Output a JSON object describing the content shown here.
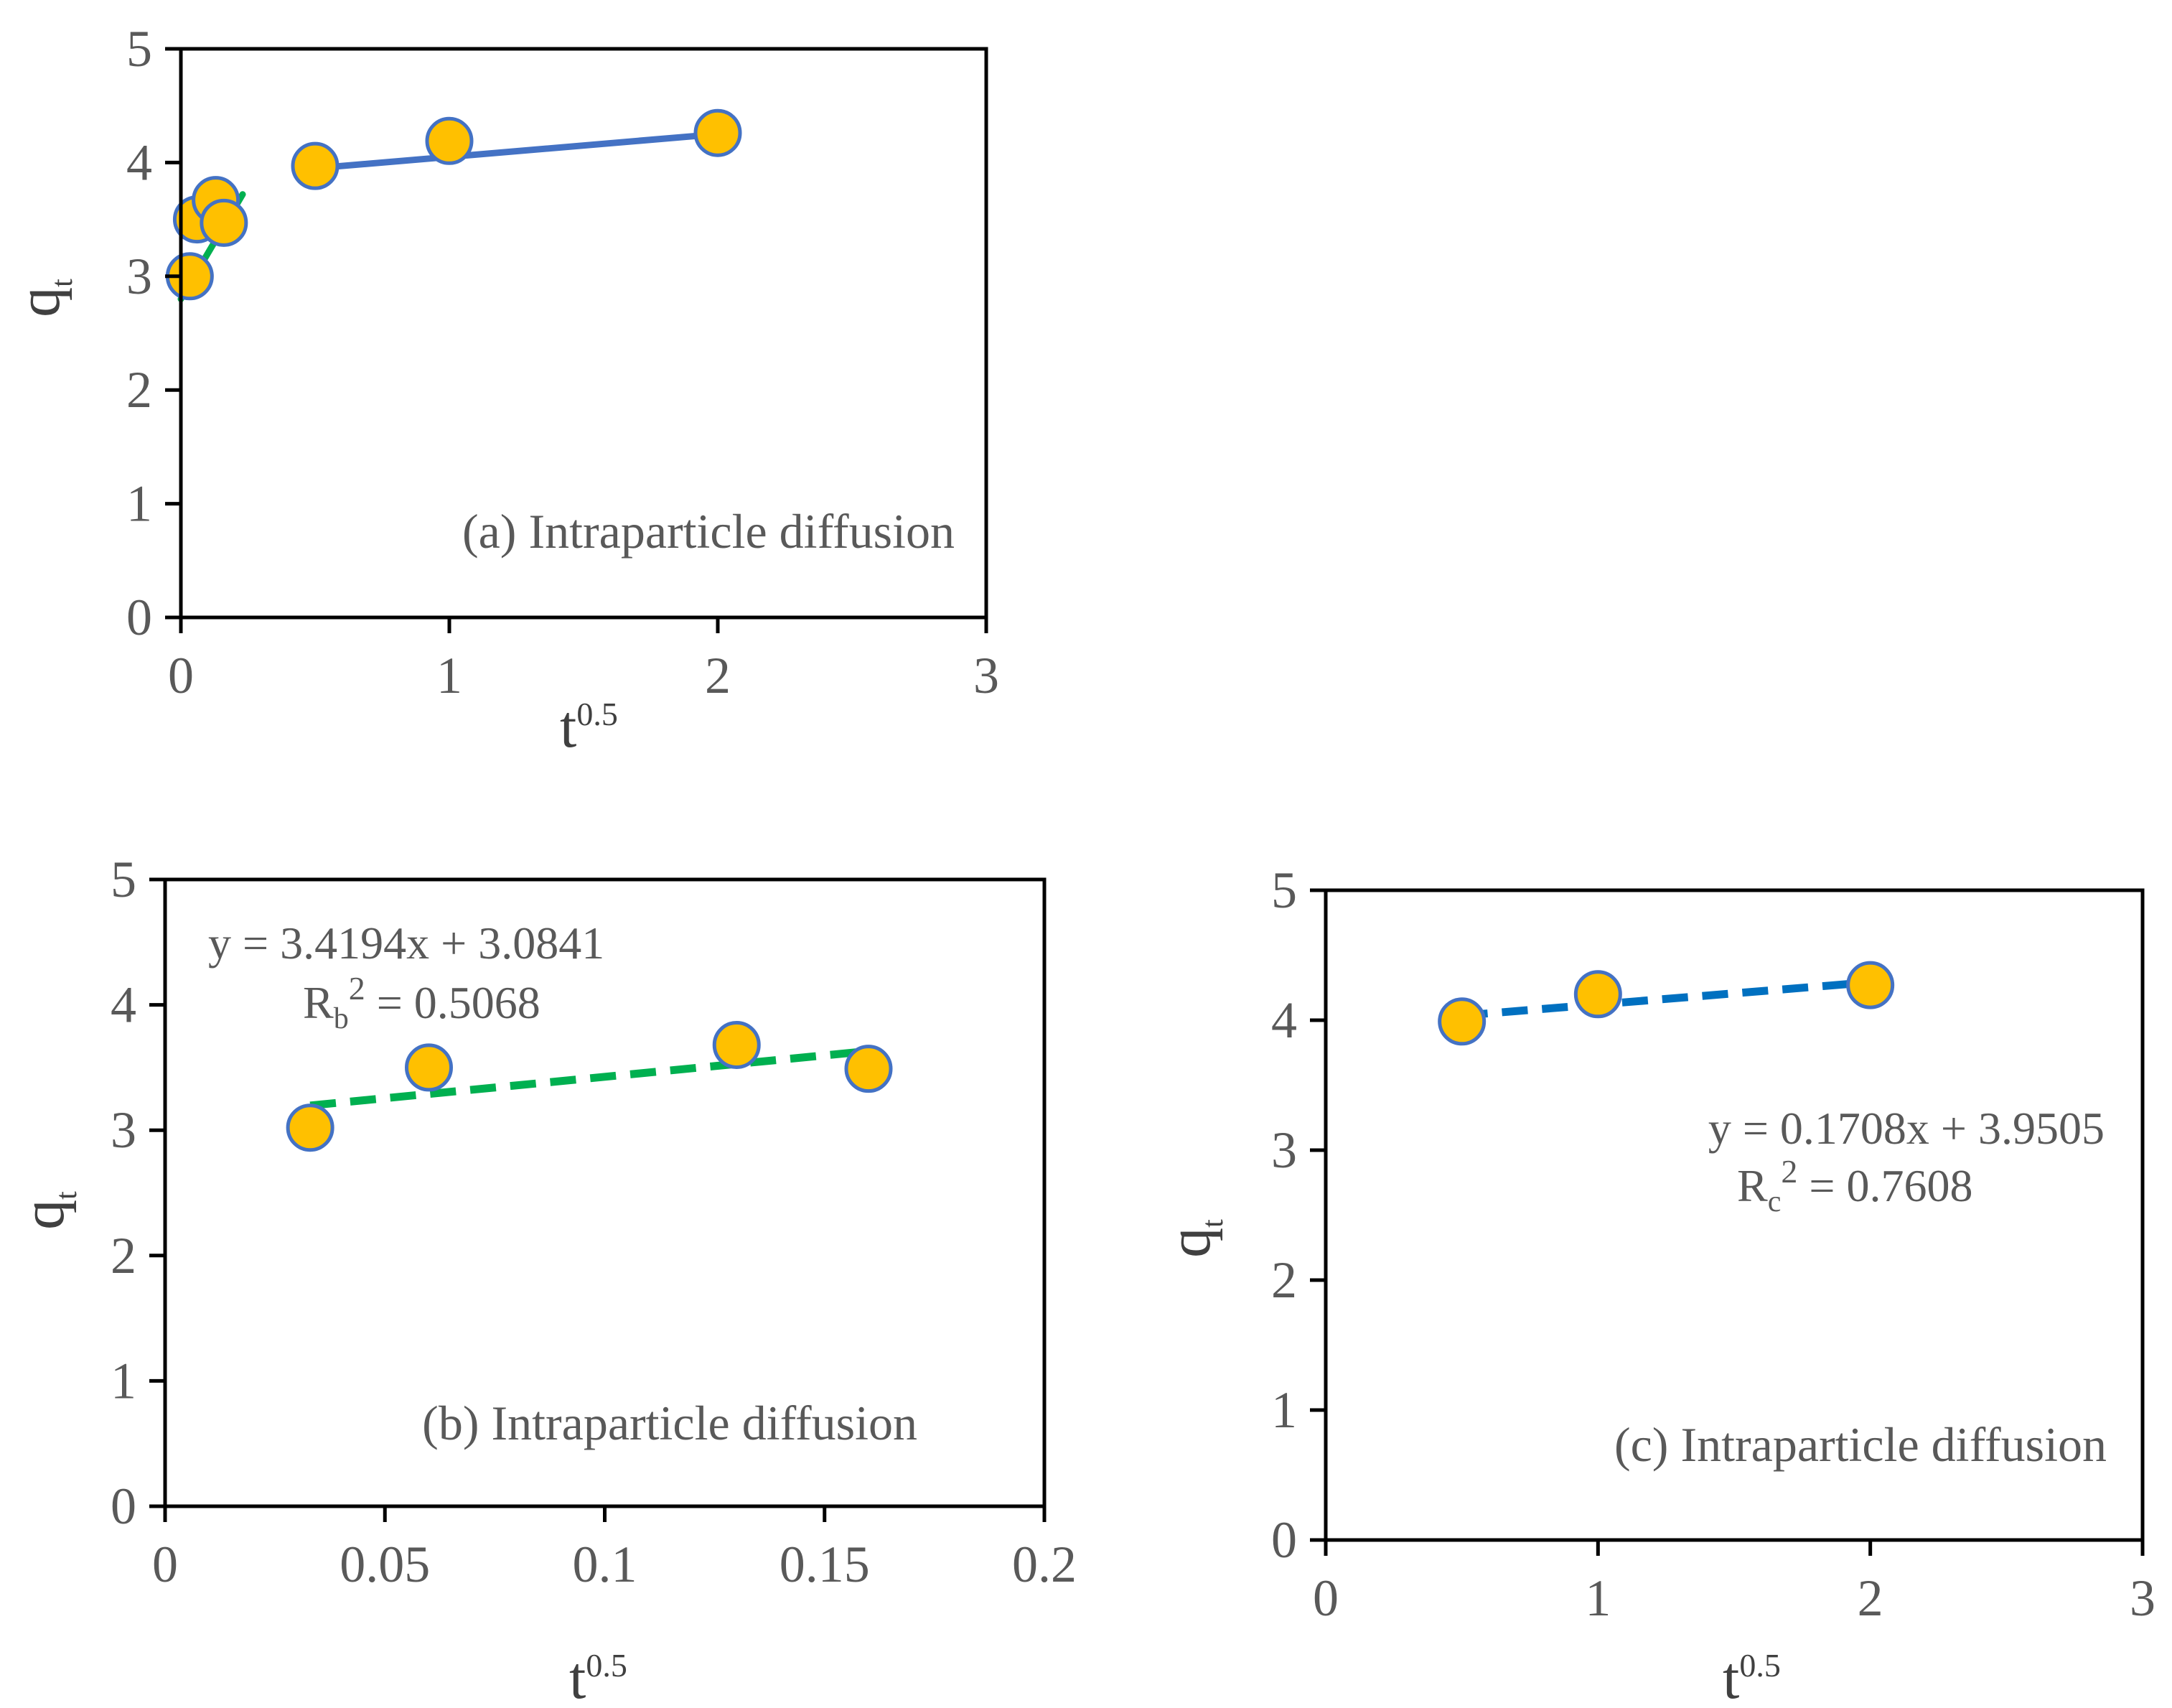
{
  "colors": {
    "marker_fill": "#FFC000",
    "marker_edge": "#4472C4",
    "green_line": "#00B050",
    "blue_solid_line": "#4472C4",
    "blue_dashed_line": "#0070C0",
    "axis": "#000000",
    "text": "#595959"
  },
  "chart_data": [
    {
      "id": "a",
      "type": "scatter",
      "title": "(a) Intraparticle diffusion",
      "xlabel_base": "t",
      "xlabel_sup": "0.5",
      "ylabel_base": "q",
      "ylabel_sub": "t",
      "xlim": [
        0,
        3
      ],
      "ylim": [
        0,
        5
      ],
      "xticks": [
        0,
        1,
        2,
        3
      ],
      "yticks": [
        0,
        1,
        2,
        3,
        4,
        5
      ],
      "tick_labels_x": [
        "0",
        "1",
        "2",
        "3"
      ],
      "tick_labels_y": [
        "0",
        "1",
        "2",
        "3",
        "4",
        "5"
      ],
      "series": [
        {
          "name": "points",
          "x": [
            0.033,
            0.06,
            0.13,
            0.16,
            0.5,
            1.0,
            2.0
          ],
          "y": [
            3.0,
            3.5,
            3.67,
            3.47,
            3.97,
            4.19,
            4.26
          ]
        }
      ],
      "fit_lines": [
        {
          "color_key": "green_line",
          "style": "solid",
          "x": [
            0,
            0.23
          ],
          "y": [
            2.8,
            3.72
          ]
        },
        {
          "color_key": "blue_solid_line",
          "style": "solid",
          "x": [
            0.5,
            2.0
          ],
          "y": [
            3.95,
            4.25
          ]
        }
      ]
    },
    {
      "id": "b",
      "type": "scatter",
      "title": "(b) Intraparticle diffusion",
      "xlabel_base": "t",
      "xlabel_sup": "0.5",
      "ylabel_base": "q",
      "ylabel_sub": "t",
      "xlim": [
        0,
        0.2
      ],
      "ylim": [
        0,
        5
      ],
      "xticks": [
        0,
        0.05,
        0.1,
        0.15,
        0.2
      ],
      "yticks": [
        0,
        1,
        2,
        3,
        4,
        5
      ],
      "tick_labels_x": [
        "0",
        "0.05",
        "0.1",
        "0.15",
        "0.2"
      ],
      "tick_labels_y": [
        "0",
        "1",
        "2",
        "3",
        "4",
        "5"
      ],
      "series": [
        {
          "name": "points",
          "x": [
            0.033,
            0.06,
            0.13,
            0.16
          ],
          "y": [
            3.02,
            3.5,
            3.68,
            3.49
          ]
        }
      ],
      "fit_lines": [
        {
          "color_key": "green_line",
          "style": "dashed",
          "x": [
            0.033,
            0.16
          ],
          "y": [
            3.197,
            3.631
          ]
        }
      ],
      "equation": "y = 3.4194x + 3.0841",
      "r2_prefix": "R",
      "r2_sub": "b",
      "r2_sup": "2",
      "r2_value": " = 0.5068"
    },
    {
      "id": "c",
      "type": "scatter",
      "title": "(c) Intraparticle diffusion",
      "xlabel_base": "t",
      "xlabel_sup": "0.5",
      "ylabel_base": "q",
      "ylabel_sub": "t",
      "xlim": [
        0,
        3
      ],
      "ylim": [
        0,
        5
      ],
      "xticks": [
        0,
        1,
        2,
        3
      ],
      "yticks": [
        0,
        1,
        2,
        3,
        4,
        5
      ],
      "tick_labels_x": [
        "0",
        "1",
        "2",
        "3"
      ],
      "tick_labels_y": [
        "0",
        "1",
        "2",
        "3",
        "4",
        "5"
      ],
      "series": [
        {
          "name": "points",
          "x": [
            0.5,
            1.0,
            2.0
          ],
          "y": [
            3.99,
            4.2,
            4.27
          ]
        }
      ],
      "fit_lines": [
        {
          "color_key": "blue_dashed_line",
          "style": "dashed",
          "x": [
            0.5,
            2.0
          ],
          "y": [
            4.036,
            4.292
          ]
        }
      ],
      "equation": "y = 0.1708x + 3.9505",
      "r2_prefix": "R",
      "r2_sub": "c",
      "r2_sup": "2",
      "r2_value": " = 0.7608"
    }
  ]
}
